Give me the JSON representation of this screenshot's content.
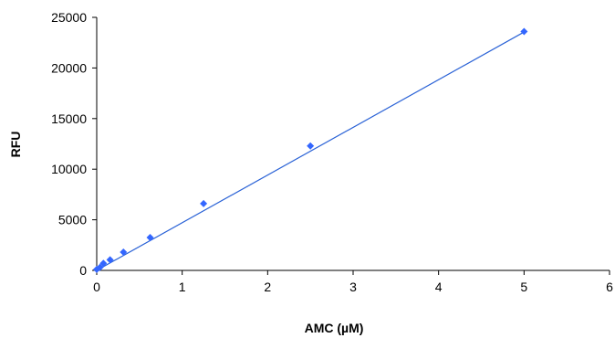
{
  "chart_data": {
    "type": "scatter",
    "title": "",
    "xlabel": "AMC (µM)",
    "ylabel": "RFU",
    "xlim": [
      0,
      6
    ],
    "ylim": [
      0,
      25000
    ],
    "x_ticks": [
      0,
      1,
      2,
      3,
      4,
      5,
      6
    ],
    "y_ticks": [
      0,
      5000,
      10000,
      15000,
      20000,
      25000
    ],
    "grid": false,
    "legend": "none",
    "colors": {
      "series": "#3366ff",
      "trendline": "#2a62d6",
      "axis": "#000000"
    },
    "series": [
      {
        "x": [
          0,
          0.039,
          0.078,
          0.156,
          0.3125,
          0.625,
          1.25,
          2.5,
          5
        ],
        "y": [
          100,
          300,
          700,
          1050,
          1800,
          3250,
          6600,
          12300,
          23600
        ]
      }
    ],
    "trendline": {
      "type": "linear",
      "from": [
        0,
        0
      ],
      "to": [
        5,
        23550
      ]
    }
  }
}
